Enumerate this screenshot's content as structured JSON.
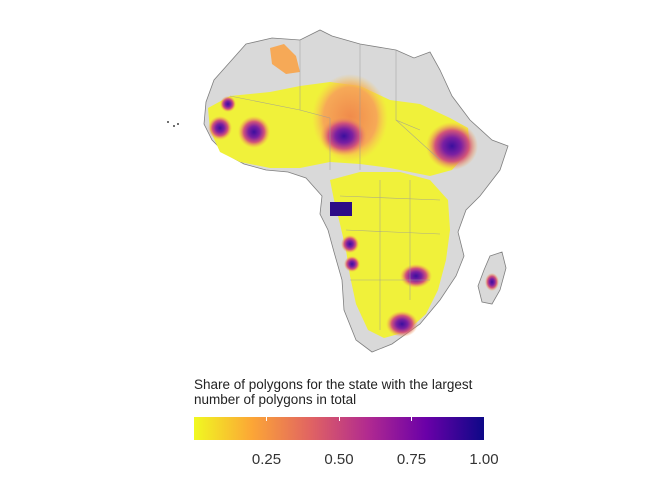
{
  "legend": {
    "title_line1": "Share of polygons for the state with the largest",
    "title_line2": "number of polygons in total",
    "ticks": [
      "0.25",
      "0.50",
      "0.75",
      "1.00"
    ],
    "range": [
      0,
      1
    ],
    "tick_values": [
      0.25,
      0.5,
      0.75,
      1.0
    ],
    "colormap": "plasma (reversed)",
    "colors": [
      "#f0f921",
      "#fca636",
      "#e16462",
      "#b12a90",
      "#6a00a8",
      "#0d0887"
    ]
  },
  "map": {
    "region": "Africa",
    "land_color": "#d9d9d9",
    "border_color": "#8c8c8c"
  }
}
